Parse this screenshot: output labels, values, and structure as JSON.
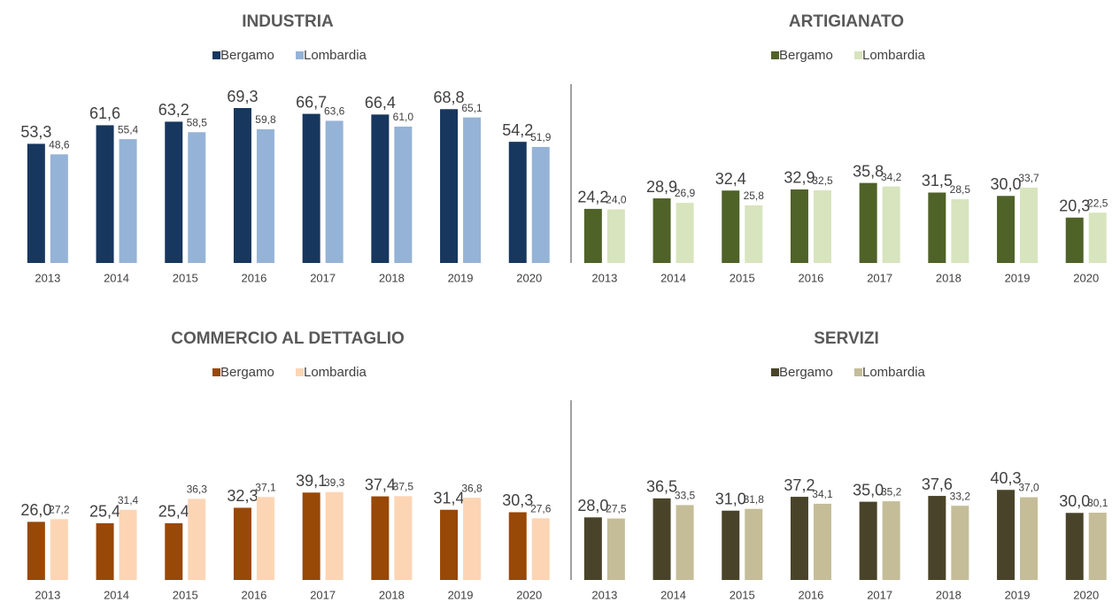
{
  "chart_data": [
    {
      "type": "bar",
      "title": "INDUSTRIA",
      "categories": [
        "2013",
        "2014",
        "2015",
        "2016",
        "2017",
        "2018",
        "2019",
        "2020"
      ],
      "ylim": [
        0,
        80
      ],
      "series": [
        {
          "name": "Bergamo",
          "color": "#17375e",
          "values": [
            53.3,
            61.6,
            63.2,
            69.3,
            66.7,
            66.4,
            68.8,
            54.2
          ],
          "value_labels": [
            "53,3",
            "61,6",
            "63,2",
            "69,3",
            "66,7",
            "66,4",
            "68,8",
            "54,2"
          ]
        },
        {
          "name": "Lombardia",
          "color": "#95b3d7",
          "values": [
            48.6,
            55.4,
            58.5,
            59.8,
            63.6,
            61.0,
            65.1,
            51.9
          ],
          "value_labels": [
            "48,6",
            "55,4",
            "58,5",
            "59,8",
            "63,6",
            "61,0",
            "65,1",
            "51,9"
          ]
        }
      ]
    },
    {
      "type": "bar",
      "title": "ARTIGIANATO",
      "categories": [
        "2013",
        "2014",
        "2015",
        "2016",
        "2017",
        "2018",
        "2019",
        "2020"
      ],
      "ylim": [
        0,
        80
      ],
      "series": [
        {
          "name": "Bergamo",
          "color": "#4f6228",
          "values": [
            24.2,
            28.9,
            32.4,
            32.9,
            35.8,
            31.5,
            30.0,
            20.3
          ],
          "value_labels": [
            "24,2",
            "28,9",
            "32,4",
            "32,9",
            "35,8",
            "31,5",
            "30,0",
            "20,3"
          ]
        },
        {
          "name": "Lombardia",
          "color": "#d7e4bd",
          "values": [
            24.0,
            26.9,
            25.8,
            32.5,
            34.2,
            28.5,
            33.7,
            22.5
          ],
          "value_labels": [
            "24,0",
            "26,9",
            "25,8",
            "32,5",
            "34,2",
            "28,5",
            "33,7",
            "22,5"
          ]
        }
      ]
    },
    {
      "type": "bar",
      "title": "COMMERCIO AL DETTAGLIO",
      "categories": [
        "2013",
        "2014",
        "2015",
        "2016",
        "2017",
        "2018",
        "2019",
        "2020"
      ],
      "ylim": [
        0,
        80
      ],
      "series": [
        {
          "name": "Bergamo",
          "color": "#984807",
          "values": [
            26.0,
            25.4,
            25.4,
            32.3,
            39.1,
            37.4,
            31.4,
            30.3
          ],
          "value_labels": [
            "26,0",
            "25,4",
            "25,4",
            "32,3",
            "39,1",
            "37,4",
            "31,4",
            "30,3"
          ]
        },
        {
          "name": "Lombardia",
          "color": "#fcd5b5",
          "values": [
            27.2,
            31.4,
            36.3,
            37.1,
            39.3,
            37.5,
            36.8,
            27.6
          ],
          "value_labels": [
            "27,2",
            "31,4",
            "36,3",
            "37,1",
            "39,3",
            "37,5",
            "36,8",
            "27,6"
          ]
        }
      ]
    },
    {
      "type": "bar",
      "title": "SERVIZI",
      "categories": [
        "2013",
        "2014",
        "2015",
        "2016",
        "2017",
        "2018",
        "2019",
        "2020"
      ],
      "ylim": [
        0,
        80
      ],
      "series": [
        {
          "name": "Bergamo",
          "color": "#494429",
          "values": [
            28.0,
            36.5,
            31.0,
            37.2,
            35.0,
            37.6,
            40.3,
            30.0
          ],
          "value_labels": [
            "28,0",
            "36,5",
            "31,0",
            "37,2",
            "35,0",
            "37,6",
            "40,3",
            "30,0"
          ]
        },
        {
          "name": "Lombardia",
          "color": "#c4bd97",
          "values": [
            27.5,
            33.5,
            31.8,
            34.1,
            35.2,
            33.2,
            37.0,
            30.1
          ],
          "value_labels": [
            "27,5",
            "33,5",
            "31,8",
            "34,1",
            "35,2",
            "33,2",
            "37,0",
            "30,1"
          ]
        }
      ]
    }
  ]
}
